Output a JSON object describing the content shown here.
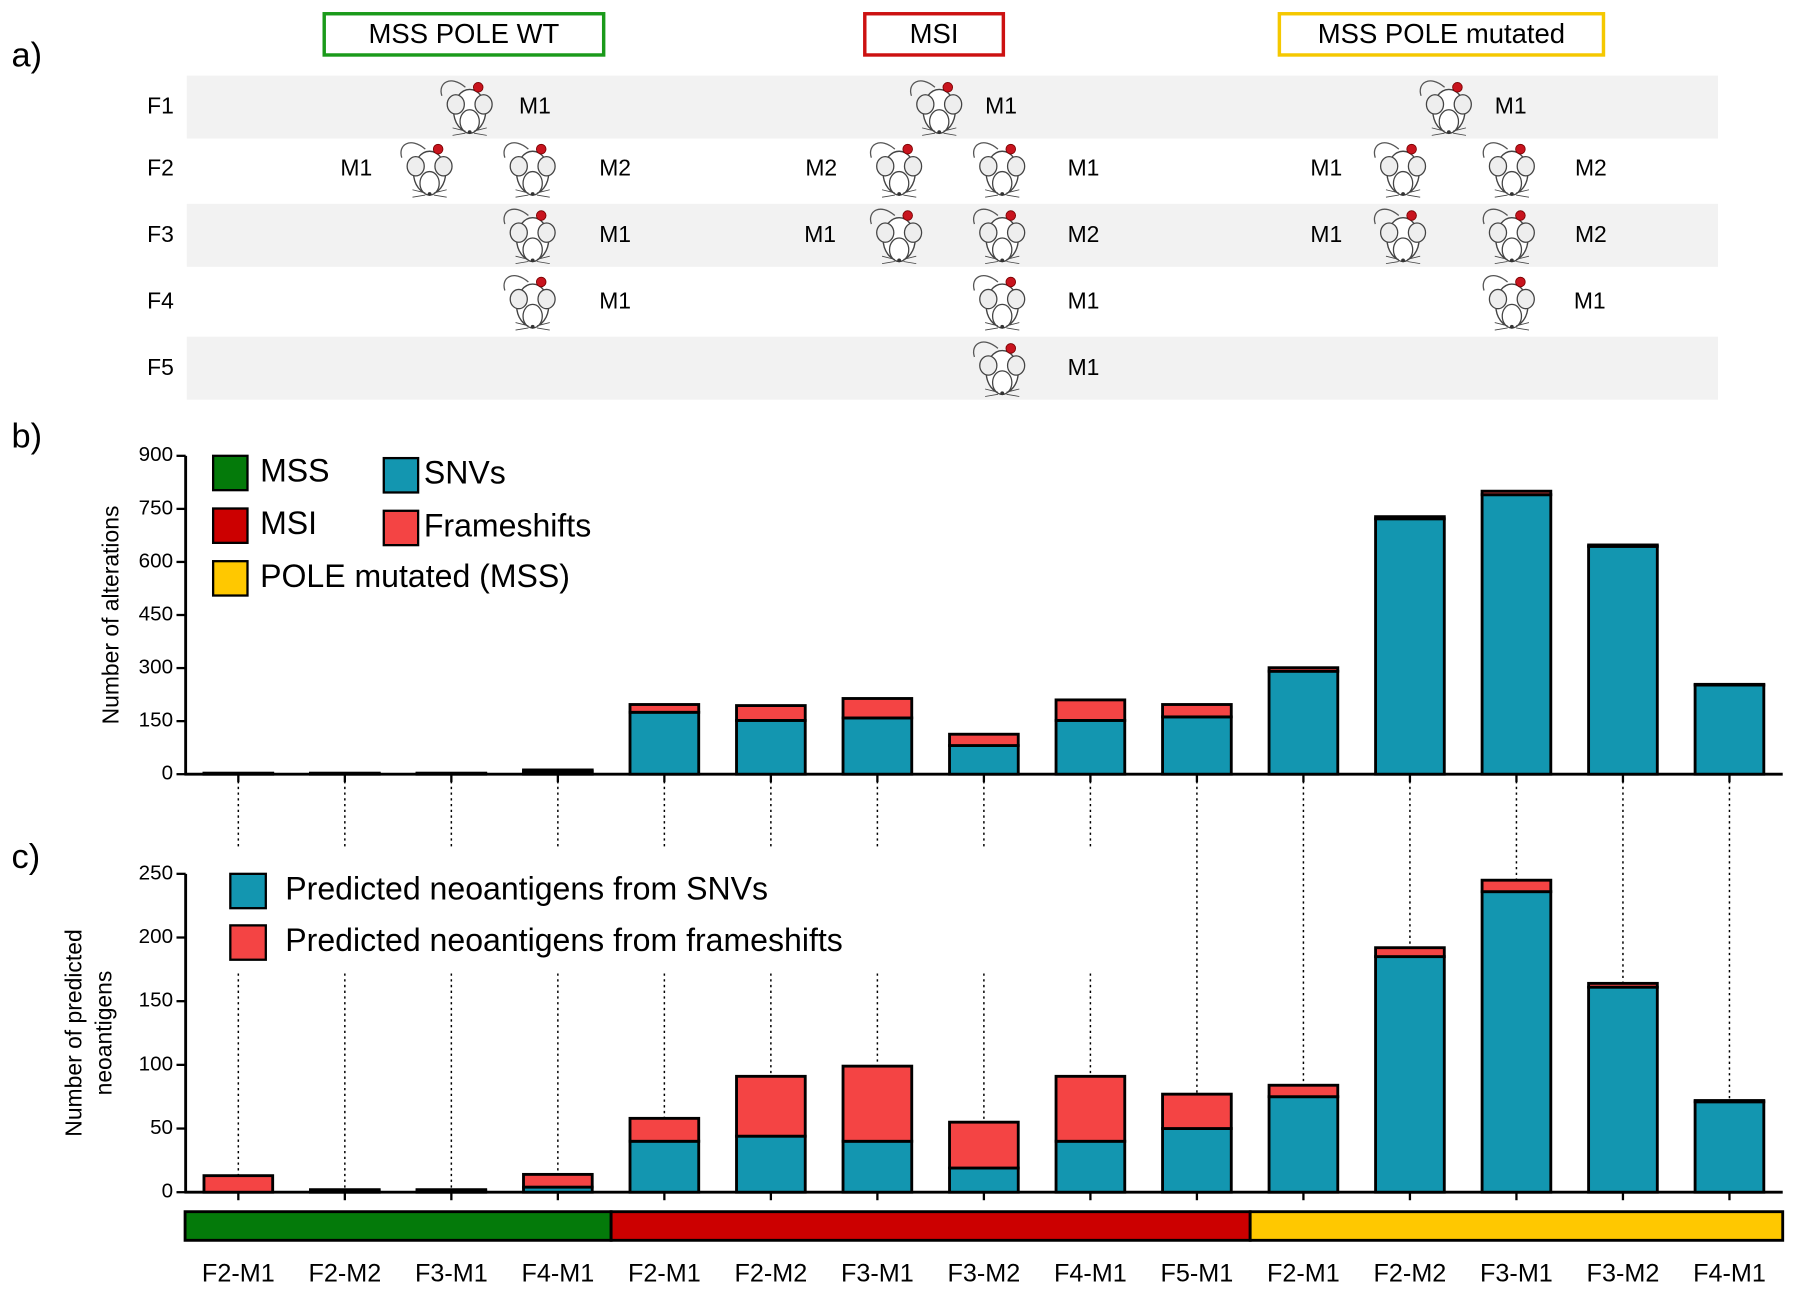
{
  "panel_labels": [
    "a)",
    "b)",
    "c)"
  ],
  "cohort": {
    "groups": [
      {
        "name": "MSS POLE WT",
        "color": "#1a9a1a"
      },
      {
        "name": "MSI",
        "color": "#cc1111"
      },
      {
        "name": "MSS POLE mutated",
        "color": "#f5c800"
      }
    ],
    "rows": [
      {
        "family": "F1",
        "mice": [
          [
            "M1"
          ],
          [
            "M1"
          ],
          [
            "M1"
          ]
        ]
      },
      {
        "family": "F2",
        "mice": [
          [
            "M1",
            "M2"
          ],
          [
            "M2",
            "M1"
          ],
          [
            "M1",
            "M2"
          ]
        ]
      },
      {
        "family": "F3",
        "mice": [
          [
            "M1"
          ],
          [
            "M1",
            "M2"
          ],
          [
            "M1",
            "M2"
          ]
        ]
      },
      {
        "family": "F4",
        "mice": [
          [
            "M1"
          ],
          [
            "M1"
          ],
          [
            "M1"
          ]
        ]
      },
      {
        "family": "F5",
        "mice": [
          [],
          [
            "M1"
          ],
          []
        ]
      }
    ]
  },
  "chart_data": [
    {
      "type": "bar",
      "stacked": true,
      "ylabel": [
        "Number of alterations"
      ],
      "ylim": [
        0,
        900
      ],
      "yticks": [
        0,
        150,
        300,
        450,
        600,
        750,
        900
      ],
      "legend": "upper left",
      "groups": [
        {
          "name": "MSS",
          "color": "#047a0a",
          "size": 4
        },
        {
          "name": "MSI",
          "color": "#cc0000",
          "size": 6
        },
        {
          "name": "POLE mutated (MSS)",
          "color": "#ffc800",
          "size": 5
        }
      ],
      "series": [
        {
          "name": "SNVs",
          "color": "#1396b0",
          "values": [
            2,
            2,
            2,
            8,
            175,
            152,
            159,
            81,
            152,
            162,
            291,
            722,
            790,
            644,
            252
          ]
        },
        {
          "name": "Frameshifts",
          "color": "#f44444",
          "values": [
            1,
            1,
            1,
            4,
            22,
            42,
            55,
            32,
            58,
            35,
            10,
            6,
            10,
            4,
            2
          ]
        }
      ]
    },
    {
      "type": "bar",
      "stacked": true,
      "ylabel": [
        "Number of predicted",
        "neoantigens"
      ],
      "ylim": [
        0,
        250
      ],
      "yticks": [
        0,
        50,
        100,
        150,
        200,
        250
      ],
      "legend": "upper left",
      "categories": [
        "F2-M1",
        "F2-M2",
        "F3-M1",
        "F4-M1",
        "F2-M1",
        "F2-M2",
        "F3-M1",
        "F3-M2",
        "F4-M1",
        "F5-M1",
        "F2-M1",
        "F2-M2",
        "F3-M1",
        "F3-M2",
        "F4-M1"
      ],
      "series": [
        {
          "name": "Predicted neoantigens from SNVs",
          "color": "#1396b0",
          "values": [
            0,
            1,
            1,
            4,
            40,
            44,
            40,
            19,
            40,
            50,
            75,
            185,
            236,
            161,
            71
          ]
        },
        {
          "name": "Predicted neoantigens from frameshifts",
          "color": "#f44444",
          "values": [
            13,
            1,
            1,
            10,
            18,
            47,
            59,
            36,
            51,
            27,
            9,
            7,
            9,
            3,
            1
          ]
        }
      ]
    }
  ]
}
